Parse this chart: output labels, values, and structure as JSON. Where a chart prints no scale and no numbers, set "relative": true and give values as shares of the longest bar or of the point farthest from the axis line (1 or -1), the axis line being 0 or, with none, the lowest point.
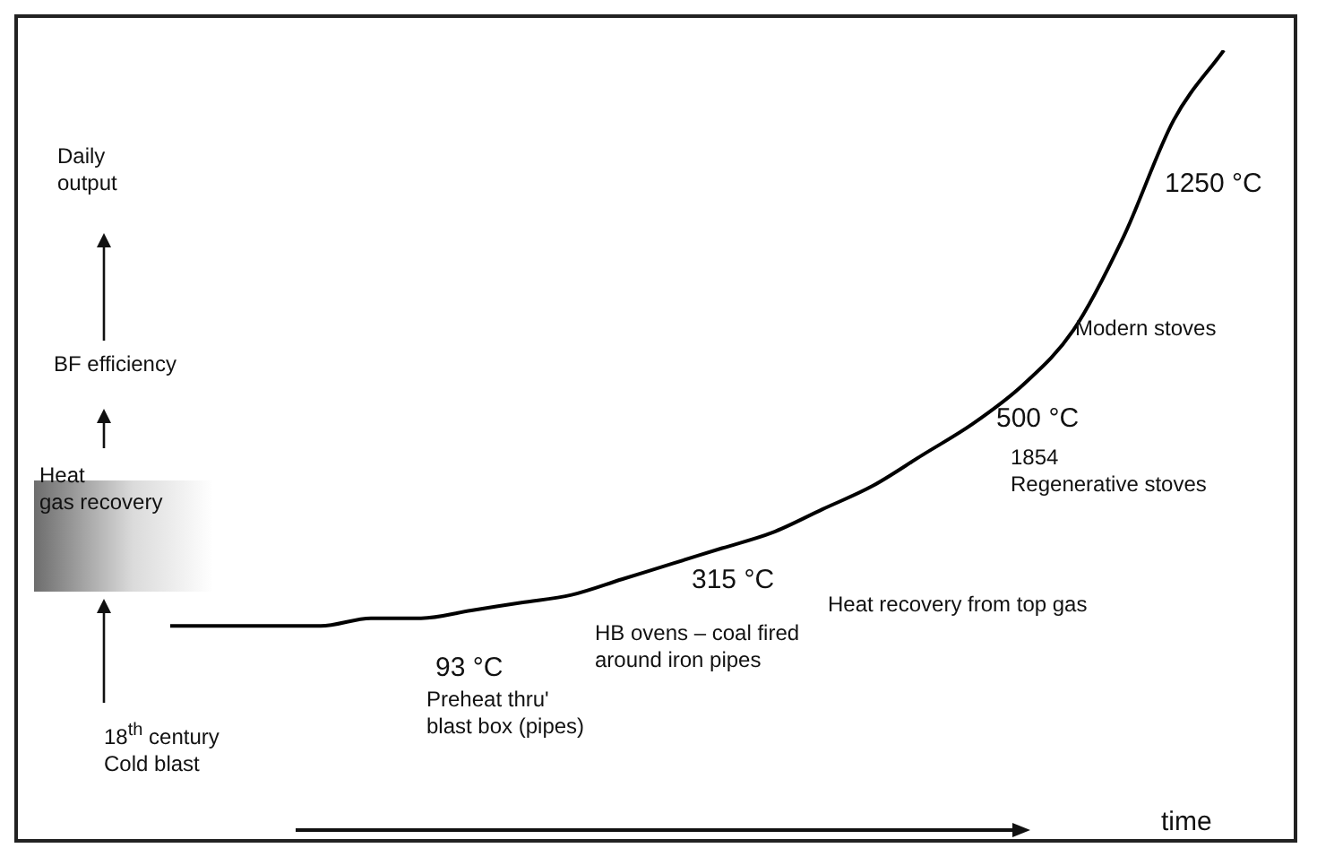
{
  "chart_data": {
    "type": "line",
    "relative": true,
    "tick_labels": false,
    "grid": false,
    "legend": false,
    "marker": "none",
    "line_style": "solid",
    "categories": [
      null,
      null,
      null,
      null,
      null,
      null,
      null,
      null,
      null,
      null,
      null,
      null,
      null,
      null,
      null,
      null,
      null,
      null,
      null,
      null,
      null,
      null
    ],
    "series": [
      {
        "color": "#000000",
        "values": [
          0.26,
          0.26,
          0.26,
          0.26,
          0.27,
          0.27,
          0.28,
          0.29,
          0.3,
          0.32,
          0.34,
          0.36,
          0.38,
          0.41,
          0.44,
          0.48,
          0.52,
          0.57,
          0.64,
          0.76,
          0.91,
          1
        ]
      }
    ],
    "annotations": [
      "Daily\noutput",
      "BF efficiency",
      "Heat\ngas recovery",
      "18$^{th}$ century\nCold blast",
      "93 °C",
      "Preheat thru'\nblast box (pipes)",
      "315 °C",
      "HB ovens – coal fired\naround iron pipes",
      "Heat recovery from top gas",
      "500 °C",
      "1854\nRegenerative stoves",
      "Modern stoves",
      "1250 °C",
      "time"
    ]
  }
}
